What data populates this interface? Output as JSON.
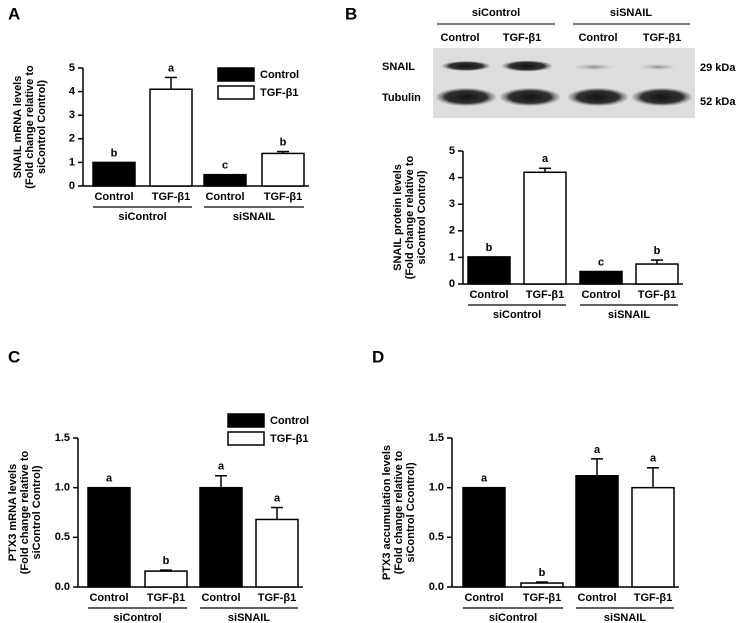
{
  "chart_data": [
    {
      "type": "bar",
      "panel": "A",
      "ylabel": [
        "SNAIL mRNA levels",
        "(Fold change relative to",
        "siControl Control)"
      ],
      "categories": [
        "siControl",
        "siSNAIL"
      ],
      "legend": true,
      "series": [
        {
          "name": "Control",
          "color": "#000000",
          "values": [
            1.0,
            0.48
          ],
          "errors": [
            null,
            null
          ],
          "annotations": [
            "b",
            "c"
          ]
        },
        {
          "name": "TGF-β1",
          "color": "#ffffff",
          "values": [
            4.1,
            1.38
          ],
          "errors": [
            0.5,
            0.08
          ],
          "annotations": [
            "a",
            "b"
          ]
        }
      ],
      "ylim": [
        0,
        5
      ],
      "yticks": [
        0,
        1,
        2,
        3,
        4,
        5
      ]
    },
    {
      "type": "bar",
      "panel": "B",
      "ylabel": [
        "SNAIL protein levels",
        "(Fold change relative to",
        "siControl Control)"
      ],
      "categories": [
        "siControl",
        "siSNAIL"
      ],
      "legend": false,
      "series": [
        {
          "name": "Control",
          "color": "#000000",
          "values": [
            1.02,
            0.47
          ],
          "errors": [
            null,
            null
          ],
          "annotations": [
            "b",
            "c"
          ]
        },
        {
          "name": "TGF-β1",
          "color": "#ffffff",
          "values": [
            4.2,
            0.75
          ],
          "errors": [
            0.15,
            0.15
          ],
          "annotations": [
            "a",
            "b"
          ]
        }
      ],
      "ylim": [
        0,
        5
      ],
      "yticks": [
        0,
        1,
        2,
        3,
        4,
        5
      ]
    },
    {
      "type": "bar",
      "panel": "C",
      "ylabel": [
        "PTX3 mRNA levels",
        "(Fold change relative to",
        "siControl Control)"
      ],
      "categories": [
        "siControl",
        "siSNAIL"
      ],
      "legend": true,
      "series": [
        {
          "name": "Control",
          "color": "#000000",
          "values": [
            1.0,
            1.0
          ],
          "errors": [
            null,
            0.12
          ],
          "annotations": [
            "a",
            "a"
          ]
        },
        {
          "name": "TGF-β1",
          "color": "#ffffff",
          "values": [
            0.16,
            0.68
          ],
          "errors": [
            0.01,
            0.12
          ],
          "annotations": [
            "b",
            "a"
          ]
        }
      ],
      "ylim": [
        0,
        1.5
      ],
      "yticks": [
        {
          "value": 0,
          "label": "0.0"
        },
        0.5,
        {
          "value": 1,
          "label": "1.0"
        },
        1.5
      ]
    },
    {
      "type": "bar",
      "panel": "D",
      "ylabel": [
        "PTX3 accumulation levels",
        "(Fold change relative to",
        "siControl Ccontrol)"
      ],
      "categories": [
        "siControl",
        "siSNAIL"
      ],
      "legend": false,
      "series": [
        {
          "name": "Control",
          "color": "#000000",
          "values": [
            1.0,
            1.12
          ],
          "errors": [
            null,
            0.17
          ],
          "annotations": [
            "a",
            "a"
          ]
        },
        {
          "name": "TGF-β1",
          "color": "#ffffff",
          "values": [
            0.04,
            1.0
          ],
          "errors": [
            0.01,
            0.2
          ],
          "annotations": [
            "b",
            "a"
          ]
        }
      ],
      "ylim": [
        0,
        1.5
      ],
      "yticks": [
        {
          "value": 0,
          "label": "0.0"
        },
        0.5,
        {
          "value": 1,
          "label": "1.0"
        },
        1.5
      ]
    }
  ],
  "blot": {
    "groups": [
      "siControl",
      "siSNAIL"
    ],
    "lanes": [
      "Control",
      "TGF-β1",
      "Control",
      "TGF-β1"
    ],
    "rows": [
      "SNAIL",
      "Tubulin"
    ],
    "sizes": [
      "29 kDa",
      "52 kDa"
    ]
  }
}
